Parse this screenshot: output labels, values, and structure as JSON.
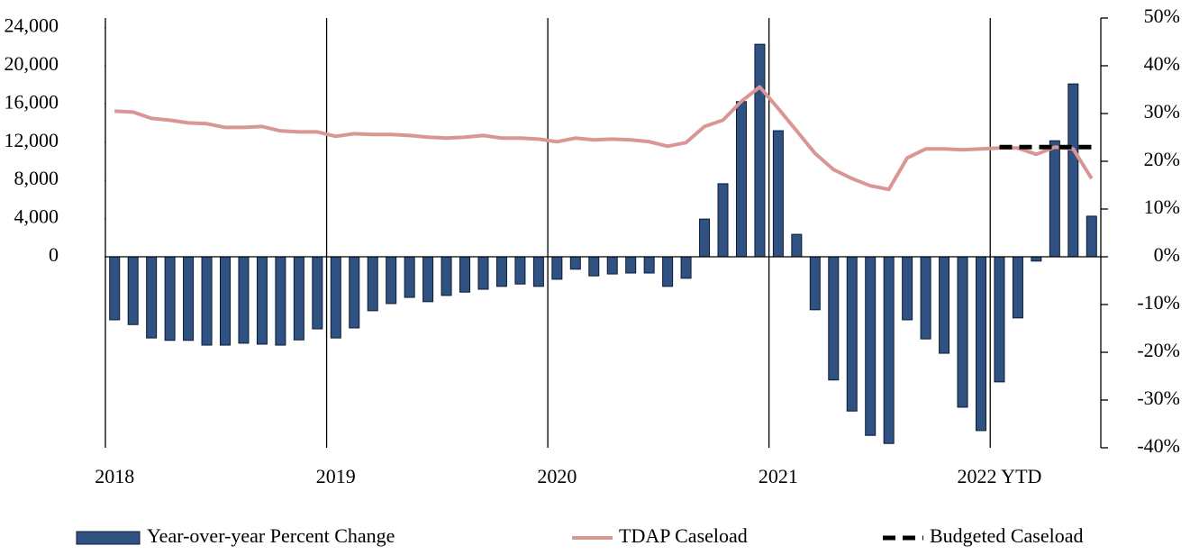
{
  "chart_data": {
    "type": "bar",
    "categories": [
      "2018",
      null,
      null,
      null,
      null,
      null,
      null,
      null,
      null,
      null,
      null,
      null,
      "2019",
      null,
      null,
      null,
      null,
      null,
      null,
      null,
      null,
      null,
      null,
      null,
      "2020",
      null,
      null,
      null,
      null,
      null,
      null,
      null,
      null,
      null,
      null,
      null,
      "2021",
      null,
      null,
      null,
      null,
      null,
      null,
      null,
      null,
      null,
      null,
      null,
      "2022 YTD",
      null,
      null,
      null,
      null,
      null
    ],
    "ylim": [
      -20000,
      25000
    ],
    "yticks": [
      {
        "value": 0,
        "label": "0"
      },
      {
        "value": 4000,
        "label": "4,000"
      },
      {
        "value": 8000,
        "label": "8,000"
      },
      {
        "value": 12000,
        "label": "12,000"
      },
      {
        "value": 16000,
        "label": "16,000"
      },
      {
        "value": 20000,
        "label": "20,000"
      },
      {
        "value": 24000,
        "label": "24,000"
      }
    ],
    "y2lim": [
      -40,
      50
    ],
    "y2ticks": [
      {
        "value": -40,
        "label": "-40%"
      },
      {
        "value": -30,
        "label": "-30%"
      },
      {
        "value": -20,
        "label": "-20%"
      },
      {
        "value": -10,
        "label": "-10%"
      },
      {
        "value": 0,
        "label": "0%"
      },
      {
        "value": 10,
        "label": "10%"
      },
      {
        "value": 20,
        "label": "20%"
      },
      {
        "value": 30,
        "label": "30%"
      },
      {
        "value": 40,
        "label": "40%"
      },
      {
        "value": 50,
        "label": "50%"
      }
    ],
    "series": [
      {
        "name": "Year-over-year Percent Change",
        "type": "bar",
        "axis": "y2",
        "color": "#2f5282",
        "values": [
          -13.2,
          -14.2,
          -17,
          -17.5,
          -17.5,
          -18.5,
          -18.5,
          -18.1,
          -18.3,
          -18.5,
          -17.4,
          -15.1,
          -17,
          -14.9,
          -11.3,
          -9.8,
          -8.5,
          -9.4,
          -8.1,
          -7.4,
          -6.8,
          -6.2,
          -5.7,
          -6.2,
          -4.7,
          -2.6,
          -4,
          -3.6,
          -3.4,
          -3.4,
          -6.2,
          -4.5,
          7.9,
          15.3,
          32.5,
          44.5,
          26.4,
          4.7,
          -11.1,
          -25.8,
          -32.3,
          -37.4,
          -39.1,
          -13.2,
          -17.2,
          -20.2,
          -31.5,
          -36.4,
          -26.2,
          -12.8,
          -0.9,
          24.3,
          36.2,
          8.5
        ]
      },
      {
        "name": "TDAP Caseload",
        "type": "line",
        "color": "#d99694",
        "values": [
          15245,
          15150,
          14490,
          14300,
          14020,
          13930,
          13550,
          13550,
          13645,
          13175,
          13080,
          13080,
          12610,
          12890,
          12800,
          12800,
          12700,
          12515,
          12420,
          12515,
          12700,
          12420,
          12420,
          12325,
          12045,
          12420,
          12235,
          12325,
          12235,
          12045,
          11575,
          11950,
          13645,
          14300,
          16280,
          17785,
          15525,
          13175,
          10820,
          9130,
          8185,
          7435,
          7060,
          10350,
          11290,
          11290,
          11200,
          11290,
          11385,
          11385,
          10730,
          11480,
          11290,
          8185
        ]
      },
      {
        "name": "Budgeted Caseload",
        "type": "line",
        "dashed": true,
        "color": "#000000",
        "values": [
          null,
          null,
          null,
          null,
          null,
          null,
          null,
          null,
          null,
          null,
          null,
          null,
          null,
          null,
          null,
          null,
          null,
          null,
          null,
          null,
          null,
          null,
          null,
          null,
          null,
          null,
          null,
          null,
          null,
          null,
          null,
          null,
          null,
          null,
          null,
          null,
          null,
          null,
          null,
          null,
          null,
          null,
          null,
          null,
          null,
          null,
          null,
          null,
          11480,
          11480,
          11480,
          11480,
          11480,
          11480
        ]
      }
    ]
  }
}
